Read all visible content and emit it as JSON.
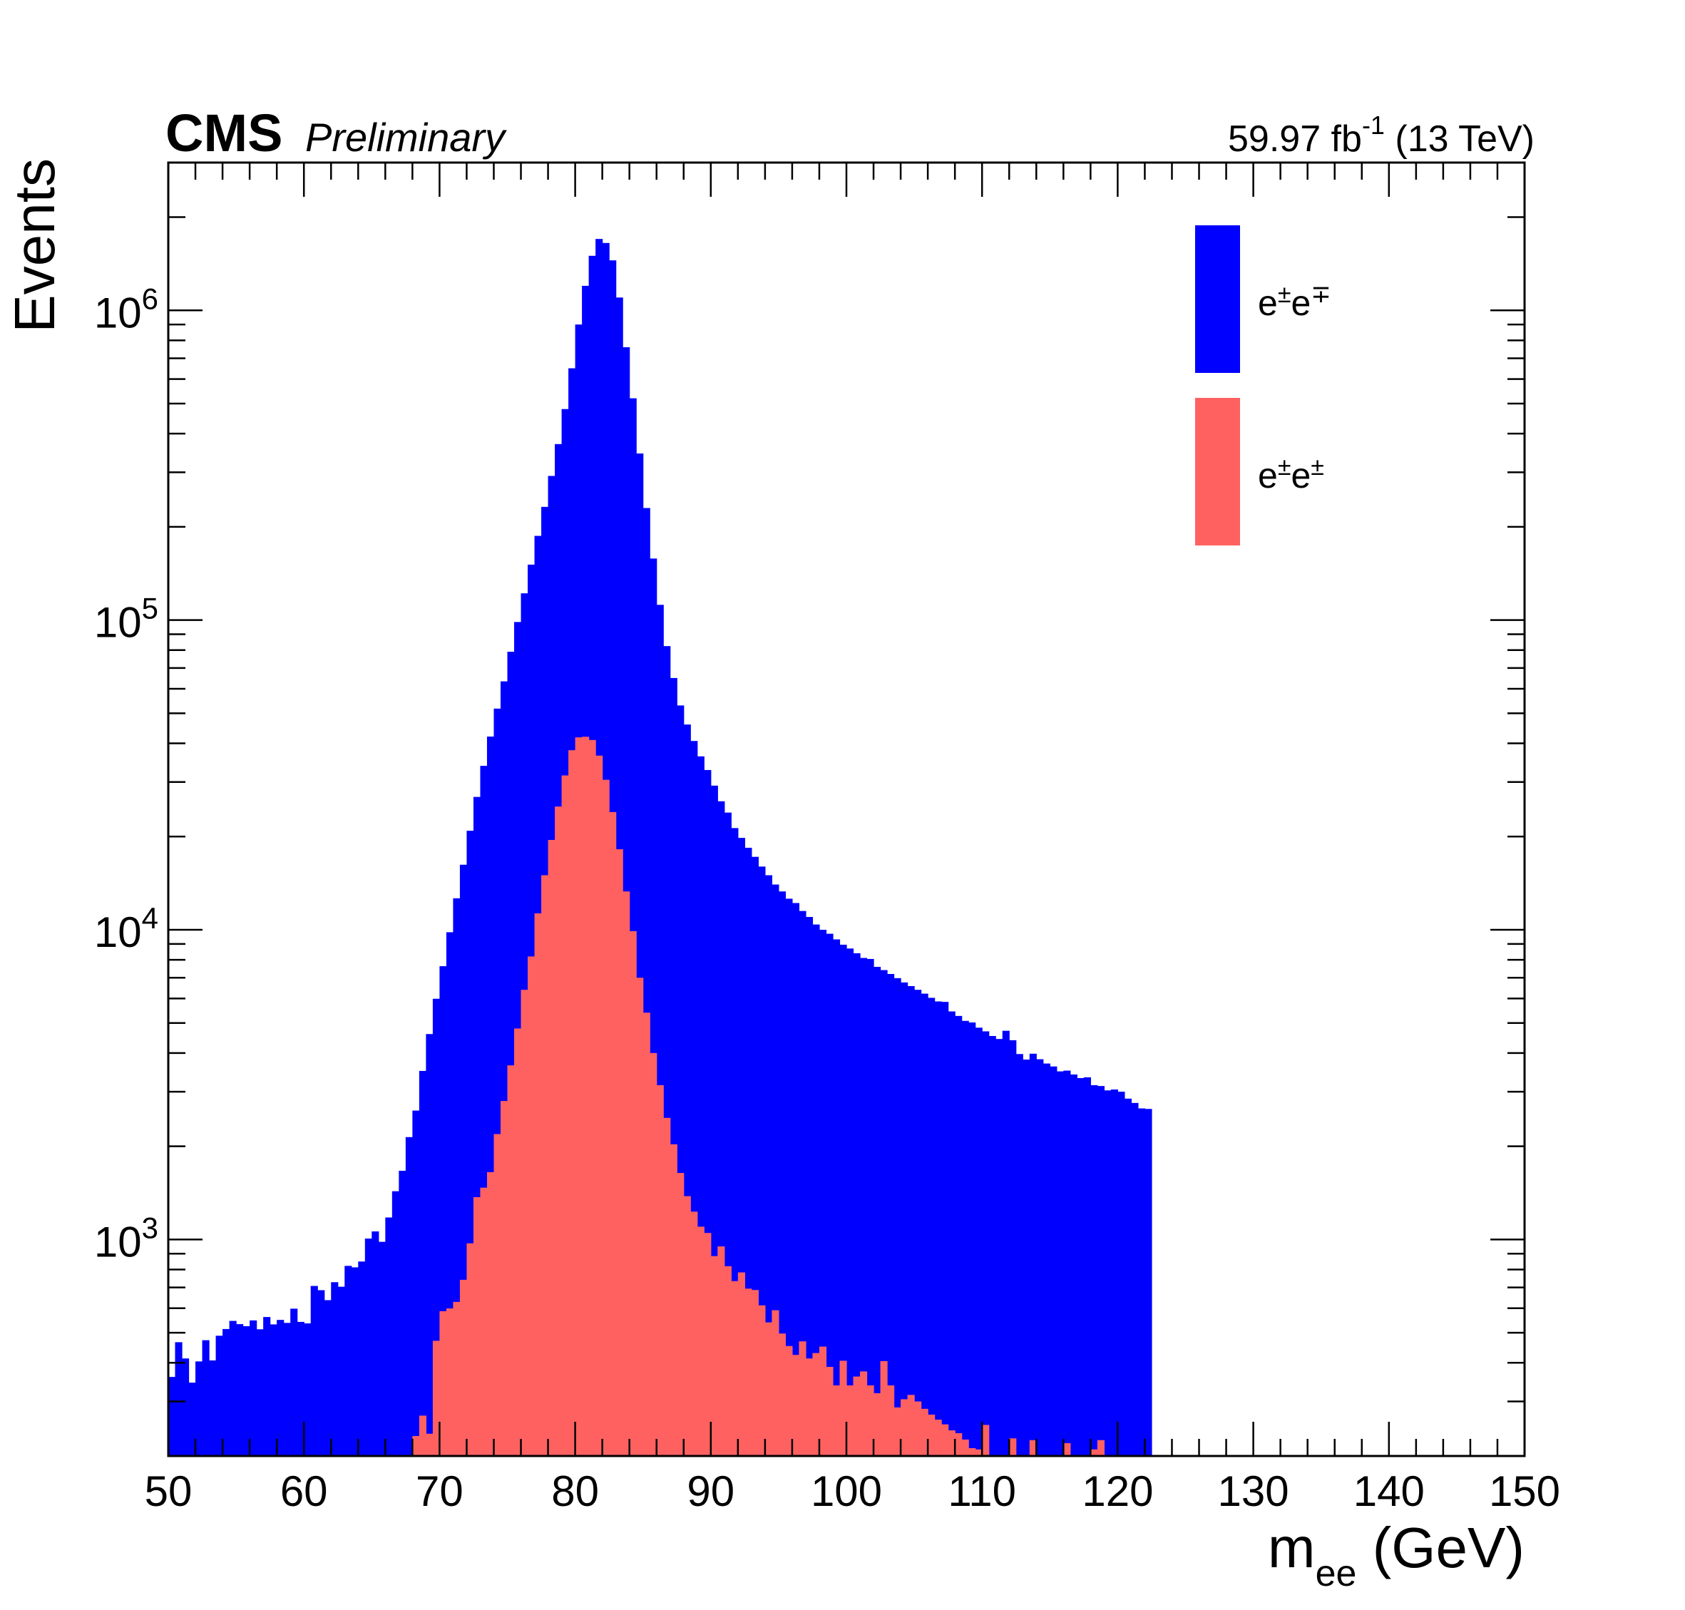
{
  "header": {
    "experiment": "CMS",
    "status": "Preliminary",
    "luminosity_value": "59.97 fb",
    "luminosity_exponent": "-1",
    "energy": "(13 TeV)"
  },
  "colors": {
    "opposite_sign": "#0000ff",
    "same_sign": "#ff6161",
    "frame": "#000000"
  },
  "chart_data": {
    "type": "histogram",
    "title": "",
    "xlabel_main": "m",
    "xlabel_sub": "ee",
    "xlabel_unit": "(GeV)",
    "ylabel": "Events",
    "xlim": [
      50,
      150
    ],
    "ylim": [
      200,
      3000000
    ],
    "yscale": "log",
    "x_ticks": [
      "50",
      "60",
      "70",
      "80",
      "90",
      "100",
      "110",
      "120",
      "130",
      "140",
      "150"
    ],
    "y_ticks": [
      {
        "base": "10",
        "exp": "3"
      },
      {
        "base": "10",
        "exp": "4"
      },
      {
        "base": "10",
        "exp": "5"
      },
      {
        "base": "10",
        "exp": "6"
      }
    ],
    "bin_width": 0.5,
    "legend_position": "top-right",
    "series": [
      {
        "name": "e±e∓",
        "legend_base": "e",
        "legend_sup1": "±",
        "legend_sup2": "∓",
        "color": "#0000ff",
        "x_start": 50,
        "values": [
          360,
          466,
          413,
          345,
          404,
          473,
          407,
          489,
          514,
          546,
          533,
          525,
          548,
          513,
          562,
          532,
          550,
          538,
          598,
          542,
          536,
          708,
          686,
          637,
          728,
          704,
          822,
          813,
          849,
          1007,
          1062,
          983,
          1178,
          1432,
          1667,
          2141,
          2608,
          3502,
          4606,
          5988,
          7628,
          9819,
          12640,
          16220,
          20880,
          26850,
          33830,
          42060,
          51770,
          63400,
          79010,
          98560,
          122000,
          151000,
          187000,
          232000,
          292000,
          370000,
          480000,
          650000,
          900000,
          1200000,
          1500000,
          1700000,
          1650000,
          1450000,
          1100000,
          760000,
          520000,
          345000,
          230000,
          158000,
          112000,
          82400,
          65000,
          53000,
          46000,
          40700,
          36300,
          32800,
          29200,
          26000,
          23900,
          21300,
          19800,
          18400,
          17200,
          16000,
          15000,
          14000,
          13300,
          12600,
          12200,
          11500,
          11000,
          10400,
          10000,
          9710,
          9310,
          8950,
          8700,
          8400,
          8110,
          8050,
          7590,
          7410,
          7200,
          6980,
          6760,
          6580,
          6400,
          6220,
          6030,
          5870,
          5850,
          5450,
          5270,
          5080,
          5020,
          4830,
          4700,
          4540,
          4440,
          4720,
          4400,
          3970,
          3810,
          3980,
          3820,
          3700,
          3620,
          3490,
          3510,
          3410,
          3320,
          3340,
          3150,
          3130,
          3030,
          3050,
          3000,
          2850,
          2760,
          2650,
          2640
        ]
      },
      {
        "name": "e±e±",
        "legend_base": "e",
        "legend_sup1": "±",
        "legend_sup2": "±",
        "color": "#ff6161",
        "x_start": 50,
        "values": [
          0,
          0,
          0,
          0,
          0,
          0,
          0,
          0,
          0,
          0,
          0,
          0,
          0,
          0,
          0,
          0,
          0,
          0,
          0,
          0,
          0,
          0,
          0,
          0,
          0,
          0,
          0,
          0,
          0,
          0,
          0,
          0,
          0,
          0,
          0,
          0,
          232,
          270,
          236,
          471,
          587,
          599,
          629,
          741,
          972,
          1370,
          1470,
          1650,
          2190,
          2800,
          3650,
          4800,
          6400,
          8200,
          11300,
          15000,
          19500,
          25000,
          31500,
          38000,
          41800,
          42000,
          41000,
          36500,
          30500,
          24000,
          18200,
          13300,
          9900,
          7000,
          5400,
          4000,
          3150,
          2470,
          2030,
          1640,
          1380,
          1230,
          1100,
          1050,
          884,
          950,
          820,
          734,
          783,
          694,
          687,
          613,
          540,
          591,
          497,
          453,
          424,
          469,
          413,
          430,
          451,
          388,
          338,
          406,
          338,
          361,
          375,
          338,
          319,
          405,
          338,
          287,
          305,
          315,
          300,
          284,
          272,
          262,
          253,
          242,
          237,
          226,
          212,
          210,
          252,
          194,
          190,
          180,
          228,
          170,
          180,
          225,
          172,
          165,
          160,
          155,
          220,
          155,
          150,
          155,
          210,
          225,
          150,
          180,
          145,
          140,
          150,
          150,
          140,
          135,
          150,
          200,
          130,
          130,
          200
        ]
      }
    ]
  }
}
